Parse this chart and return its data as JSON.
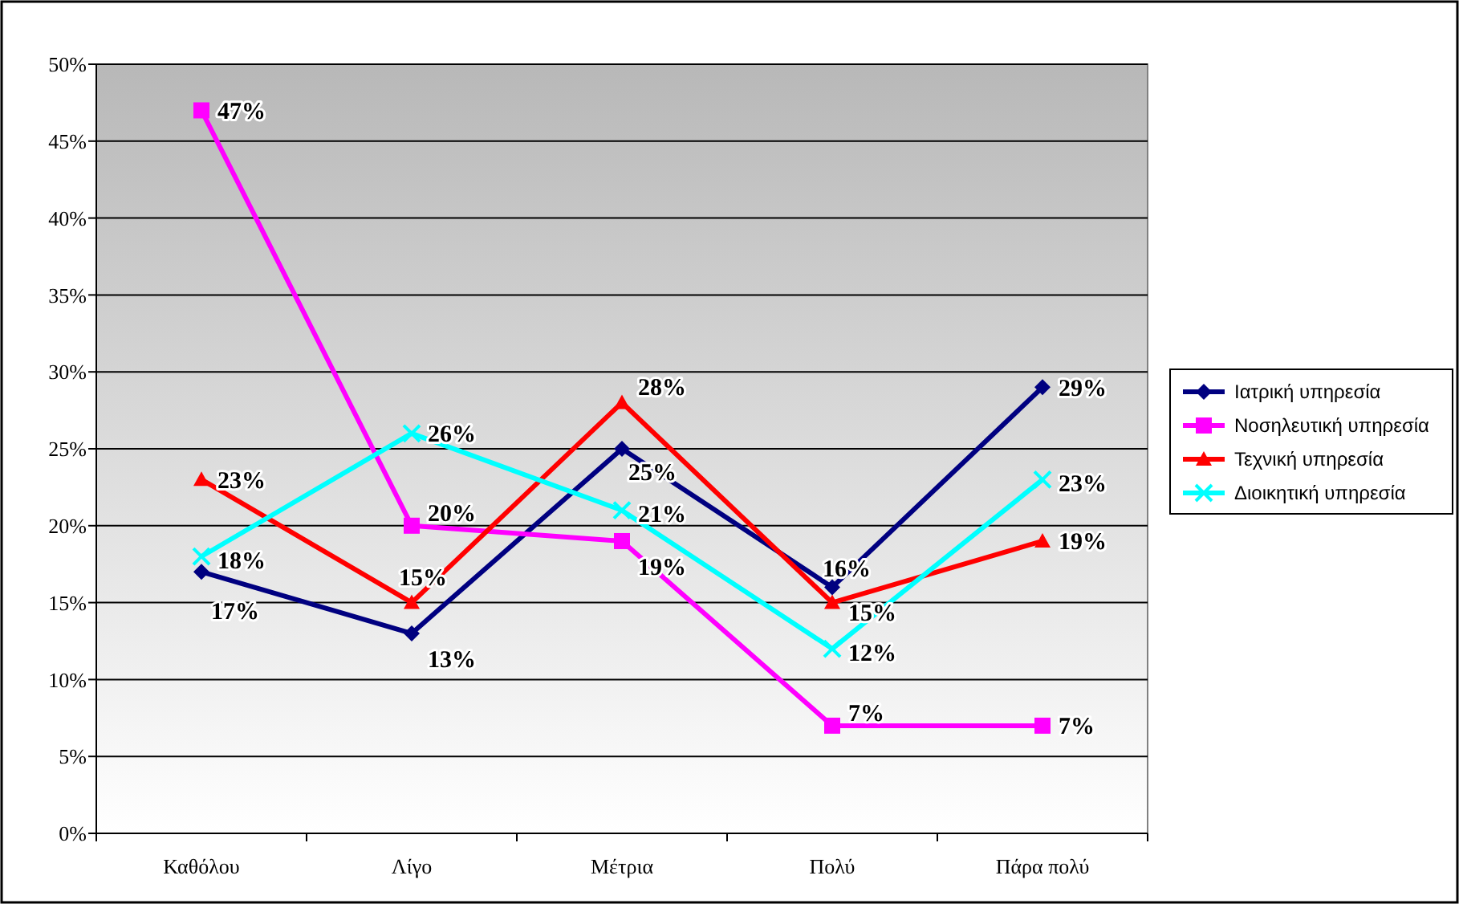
{
  "chart_data": {
    "type": "line",
    "categories": [
      "Καθόλου",
      "Λίγο",
      "Μέτρια",
      "Πολύ",
      "Πάρα πολύ"
    ],
    "series": [
      {
        "name": "Ιατρική υπηρεσία",
        "color": "#000080",
        "marker": "diamond",
        "values": [
          17,
          13,
          25,
          16,
          29
        ],
        "value_labels": [
          "17%",
          "13%",
          "25%",
          "16%",
          "29%"
        ]
      },
      {
        "name": "Νοσηλευτική υπηρεσία",
        "color": "#ff00ff",
        "marker": "square",
        "values": [
          47,
          20,
          19,
          7,
          7
        ],
        "value_labels": [
          "47%",
          "20%",
          "19%",
          "7%",
          "7%"
        ]
      },
      {
        "name": "Τεχνική υπηρεσία",
        "color": "#ff0000",
        "marker": "triangle",
        "values": [
          23,
          15,
          28,
          15,
          19
        ],
        "value_labels": [
          "23%",
          "15%",
          "28%",
          "15%",
          "19%"
        ]
      },
      {
        "name": "Διοικητική υπηρεσία",
        "color": "#00ffff",
        "marker": "cross",
        "values": [
          18,
          26,
          21,
          12,
          23
        ],
        "value_labels": [
          "18%",
          "26%",
          "21%",
          "12%",
          "23%"
        ]
      }
    ],
    "ylim": [
      0,
      50
    ],
    "yticks": [
      {
        "value": 0,
        "label": "0%"
      },
      {
        "value": 5,
        "label": "5%"
      },
      {
        "value": 10,
        "label": "10%"
      },
      {
        "value": 15,
        "label": "15%"
      },
      {
        "value": 20,
        "label": "20%"
      },
      {
        "value": 25,
        "label": "25%"
      },
      {
        "value": 30,
        "label": "30%"
      },
      {
        "value": 35,
        "label": "35%"
      },
      {
        "value": 40,
        "label": "40%"
      },
      {
        "value": 45,
        "label": "45%"
      },
      {
        "value": 50,
        "label": "50%"
      }
    ],
    "grid": "y",
    "legend": "right",
    "line_style": "solid"
  }
}
